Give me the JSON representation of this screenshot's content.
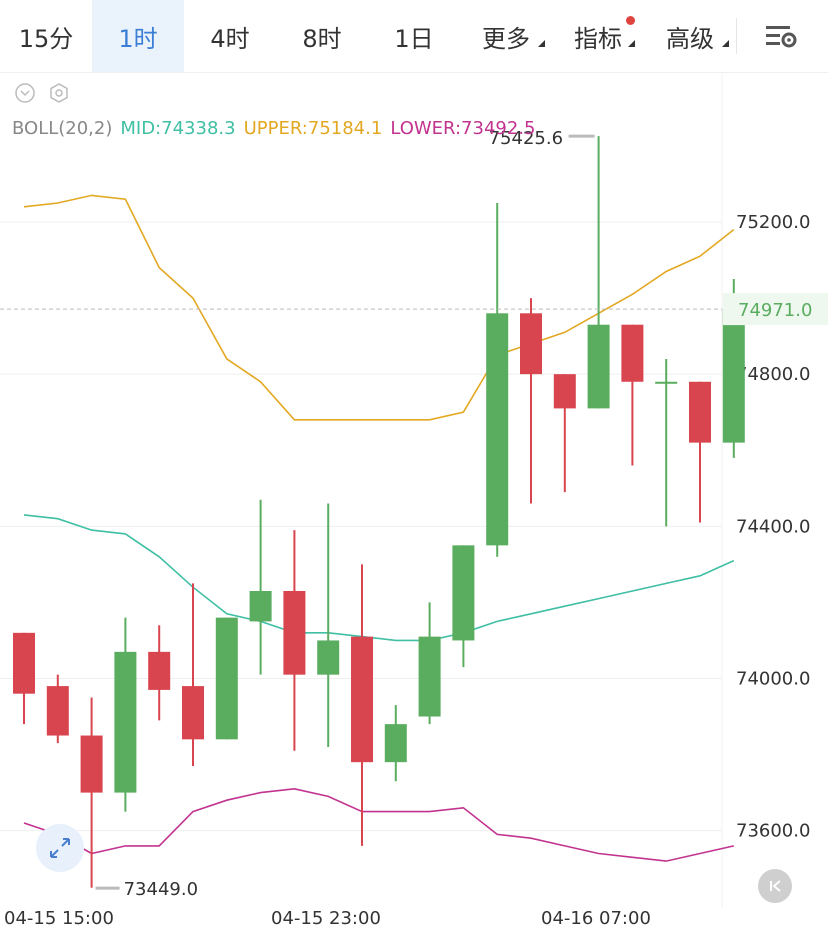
{
  "toolbar": {
    "tabs": [
      {
        "label": "15分"
      },
      {
        "label": "1时"
      },
      {
        "label": "4时"
      },
      {
        "label": "8时"
      },
      {
        "label": "1日"
      },
      {
        "label": "更多"
      },
      {
        "label": "指标"
      },
      {
        "label": "高级"
      }
    ],
    "active_tab": "1时",
    "indicator_dot_color": "#e0443e"
  },
  "indicator": {
    "name": "BOLL(20,2)",
    "mid": "MID:74338.3",
    "upper": "UPPER:75184.1",
    "lower": "LOWER:73492.5",
    "colors": {
      "mid": "#3fbfa3",
      "upper": "#e3a822",
      "lower": "#c2338f"
    }
  },
  "chart_data": {
    "type": "candlestick",
    "symbol_interval": "1时",
    "x_labels": [
      "04-15 15:00",
      "04-15 23:00",
      "04-16 07:00"
    ],
    "y_ticks": [
      75200.0,
      74800.0,
      74400.0,
      74000.0,
      73600.0
    ],
    "ylim": [
      73400,
      75460
    ],
    "last_price": "74971.0",
    "high_label": "75425.6",
    "low_label": "73449.0",
    "colors": {
      "up": "#5aad5f",
      "down": "#d9454f"
    },
    "candles": [
      {
        "o": 74120,
        "h": 74120,
        "l": 73880,
        "c": 73960
      },
      {
        "o": 73980,
        "h": 74010,
        "l": 73830,
        "c": 73850
      },
      {
        "o": 73850,
        "h": 73950,
        "l": 73450,
        "c": 73700
      },
      {
        "o": 73700,
        "h": 74160,
        "l": 73650,
        "c": 74070
      },
      {
        "o": 74070,
        "h": 74140,
        "l": 73890,
        "c": 73970
      },
      {
        "o": 73980,
        "h": 74250,
        "l": 73770,
        "c": 73840
      },
      {
        "o": 73840,
        "h": 74160,
        "l": 73840,
        "c": 74160
      },
      {
        "o": 74150,
        "h": 74470,
        "l": 74010,
        "c": 74230
      },
      {
        "o": 74230,
        "h": 74390,
        "l": 73810,
        "c": 74010
      },
      {
        "o": 74010,
        "h": 74460,
        "l": 73820,
        "c": 74100
      },
      {
        "o": 74110,
        "h": 74300,
        "l": 73560,
        "c": 73780
      },
      {
        "o": 73780,
        "h": 73930,
        "l": 73730,
        "c": 73880
      },
      {
        "o": 73900,
        "h": 74200,
        "l": 73880,
        "c": 74110
      },
      {
        "o": 74100,
        "h": 74350,
        "l": 74030,
        "c": 74350
      },
      {
        "o": 74350,
        "h": 75250,
        "l": 74320,
        "c": 74960
      },
      {
        "o": 74960,
        "h": 75000,
        "l": 74460,
        "c": 74800
      },
      {
        "o": 74800,
        "h": 74800,
        "l": 74490,
        "c": 74710
      },
      {
        "o": 74710,
        "h": 75425.6,
        "l": 74710,
        "c": 74930
      },
      {
        "o": 74930,
        "h": 74930,
        "l": 74560,
        "c": 74780
      },
      {
        "o": 74780,
        "h": 74840,
        "l": 74400,
        "c": 74780
      },
      {
        "o": 74780,
        "h": 74780,
        "l": 74410,
        "c": 74620
      },
      {
        "o": 74620,
        "h": 75050,
        "l": 74580,
        "c": 74971
      }
    ],
    "boll_upper": [
      75240,
      75250,
      75270,
      75260,
      75080,
      75000,
      74840,
      74780,
      74680,
      74680,
      74680,
      74680,
      74680,
      74700,
      74850,
      74880,
      74910,
      74960,
      75010,
      75070,
      75110,
      75180
    ],
    "boll_mid": [
      74430,
      74420,
      74390,
      74380,
      74320,
      74240,
      74170,
      74150,
      74120,
      74120,
      74110,
      74100,
      74100,
      74120,
      74150,
      74170,
      74190,
      74210,
      74230,
      74250,
      74270,
      74310
    ],
    "boll_lower": [
      73620,
      73590,
      73540,
      73560,
      73560,
      73650,
      73680,
      73700,
      73710,
      73690,
      73650,
      73650,
      73650,
      73660,
      73590,
      73580,
      73560,
      73540,
      73530,
      73520,
      73540,
      73560
    ]
  }
}
